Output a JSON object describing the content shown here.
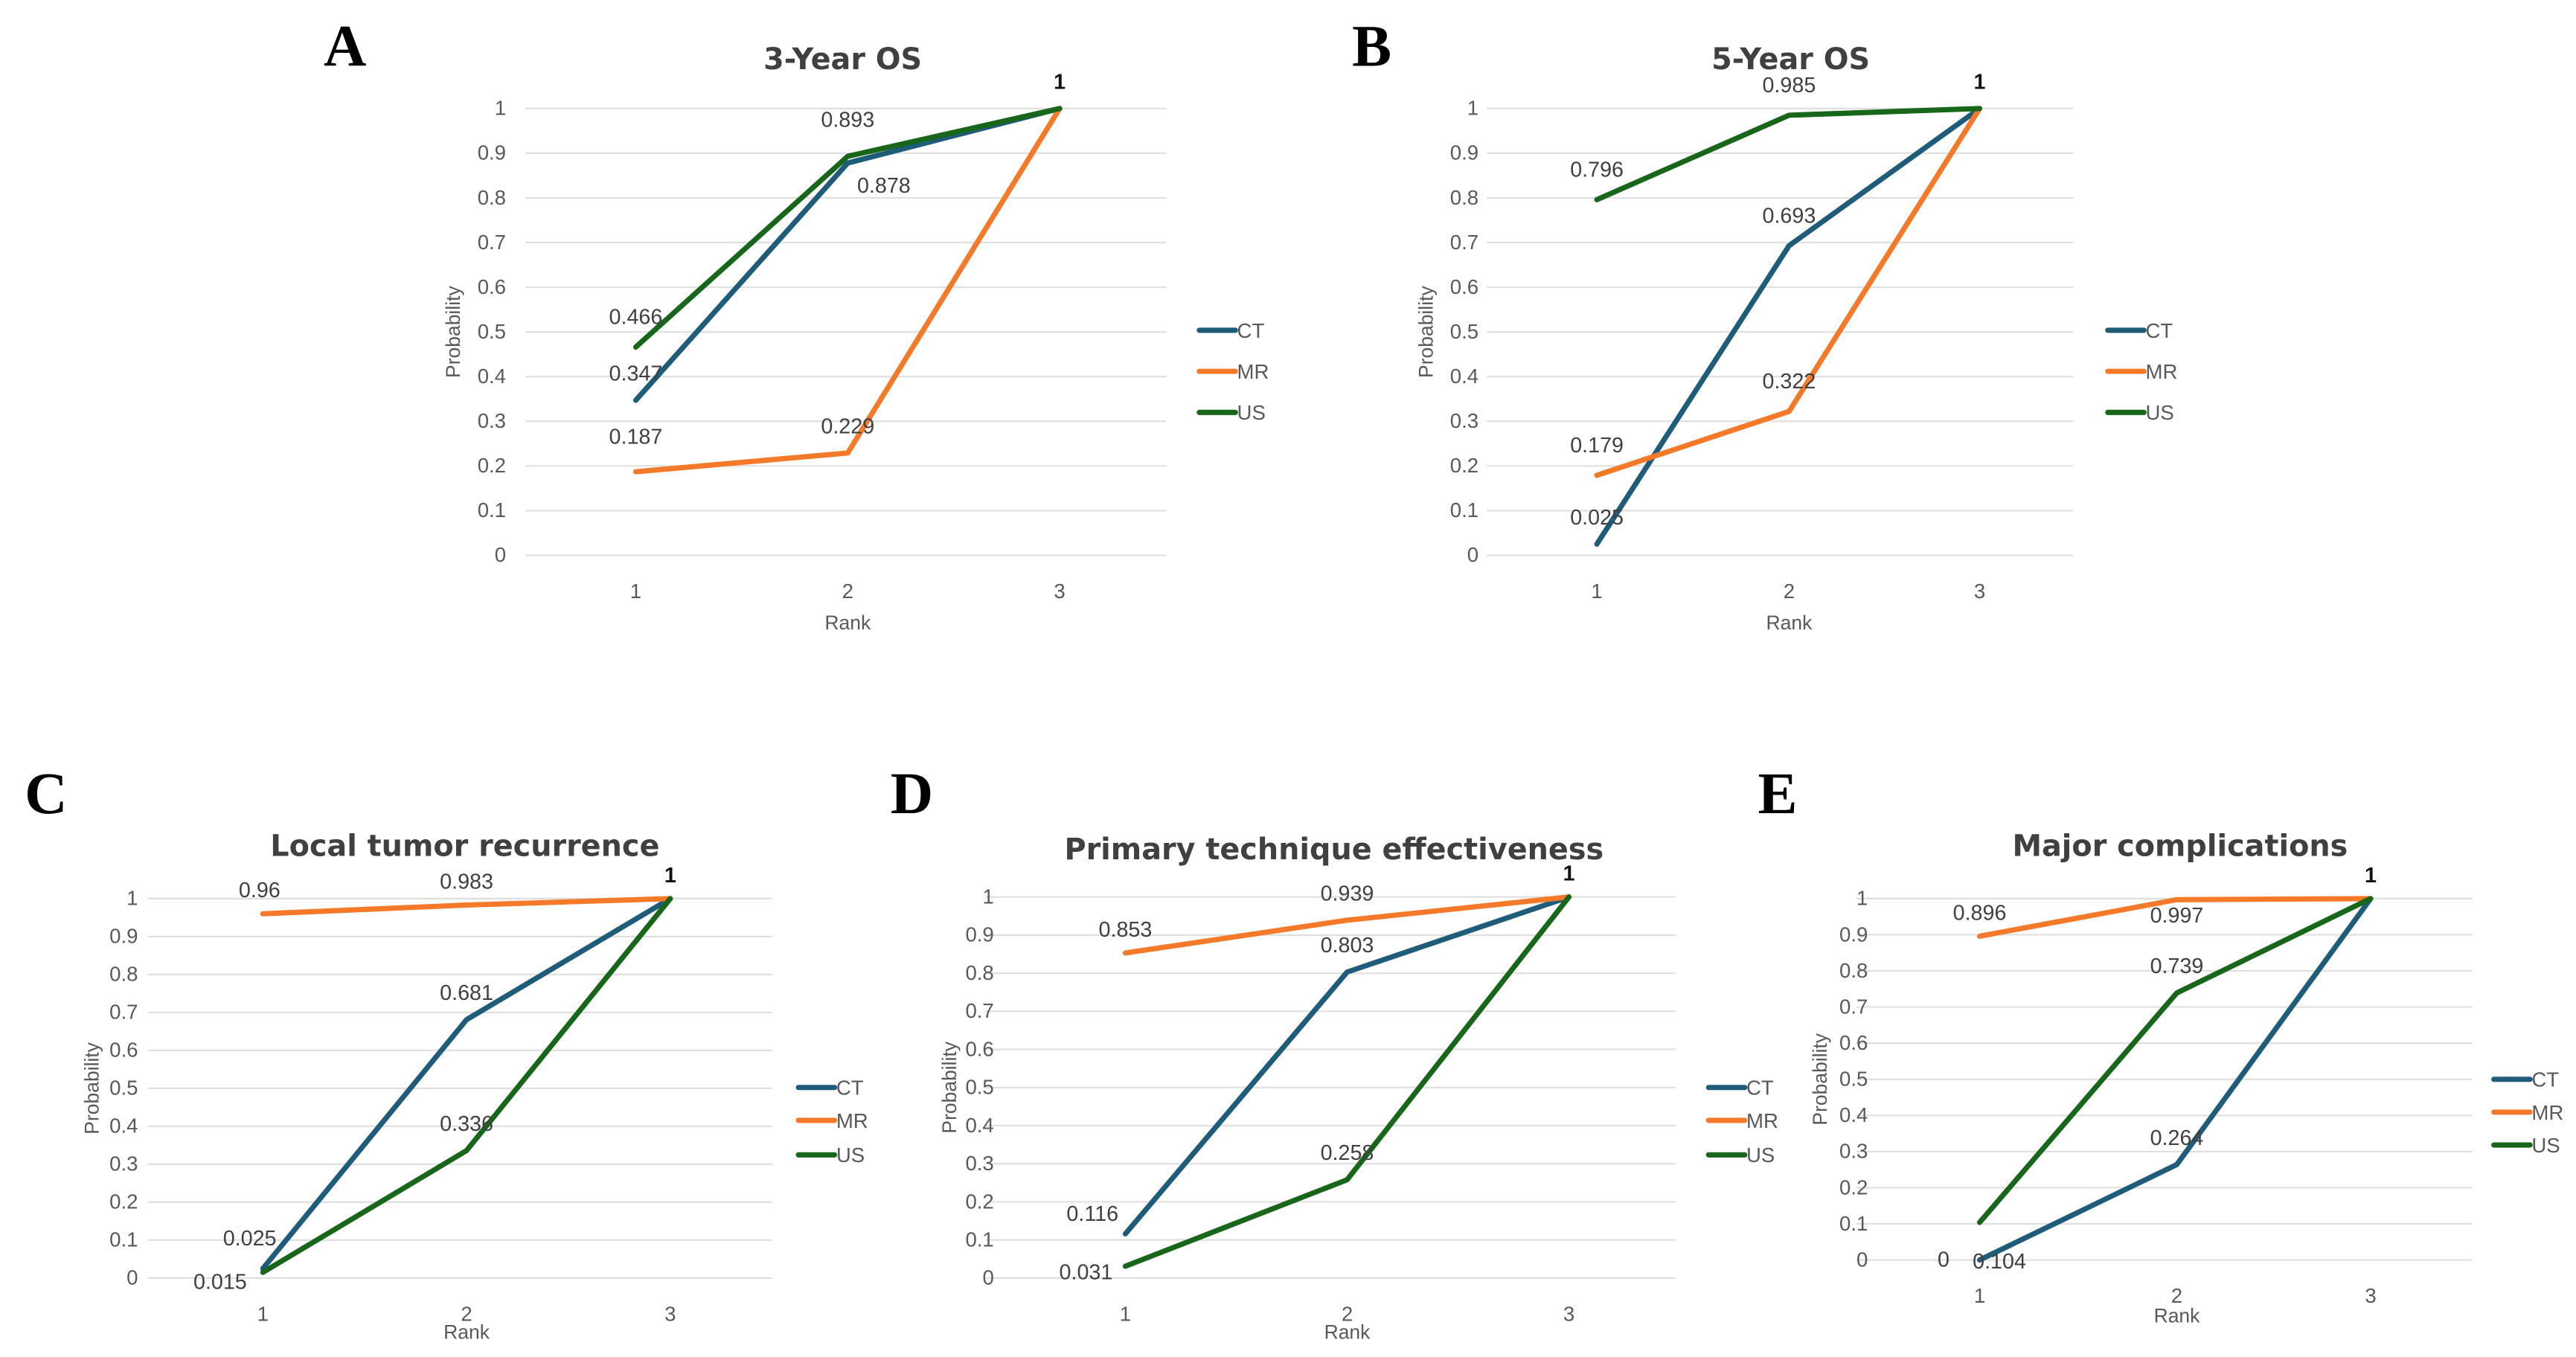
{
  "colors": {
    "CT": "#1F5C7A",
    "MR": "#F47A2A",
    "US": "#17661A"
  },
  "chart_data": [
    {
      "panel": "A",
      "type": "line",
      "title": "3-Year OS",
      "xlabel": "Rank",
      "ylabel": "Probability",
      "categories": [
        "1",
        "2",
        "3"
      ],
      "yticks": [
        "0",
        "0.1",
        "0.2",
        "0.3",
        "0.4",
        "0.5",
        "0.6",
        "0.7",
        "0.8",
        "0.9",
        "1"
      ],
      "ylim": [
        0,
        1
      ],
      "grid": true,
      "legend": "right",
      "series": [
        {
          "name": "CT",
          "values": [
            0.347,
            0.878,
            1
          ],
          "labels": [
            "0.347",
            "0.878",
            ""
          ]
        },
        {
          "name": "MR",
          "values": [
            0.187,
            0.229,
            1
          ],
          "labels": [
            "0.187",
            "0.229",
            ""
          ]
        },
        {
          "name": "US",
          "values": [
            0.466,
            0.893,
            1
          ],
          "labels": [
            "0.466",
            "0.893",
            "1"
          ]
        }
      ]
    },
    {
      "panel": "B",
      "type": "line",
      "title": "5-Year OS",
      "xlabel": "Rank",
      "ylabel": "Probability",
      "categories": [
        "1",
        "2",
        "3"
      ],
      "yticks": [
        "0",
        "0.1",
        "0.2",
        "0.3",
        "0.4",
        "0.5",
        "0.6",
        "0.7",
        "0.8",
        "0.9",
        "1"
      ],
      "ylim": [
        0,
        1
      ],
      "grid": true,
      "legend": "right",
      "series": [
        {
          "name": "CT",
          "values": [
            0.025,
            0.693,
            1
          ],
          "labels": [
            "0.025",
            "0.693",
            ""
          ]
        },
        {
          "name": "MR",
          "values": [
            0.179,
            0.322,
            1
          ],
          "labels": [
            "0.179",
            "0.322",
            ""
          ]
        },
        {
          "name": "US",
          "values": [
            0.796,
            0.985,
            1
          ],
          "labels": [
            "0.796",
            "0.985",
            "1"
          ]
        }
      ]
    },
    {
      "panel": "C",
      "type": "line",
      "title": "Local tumor recurrence",
      "xlabel": "Rank",
      "ylabel": "Probability",
      "categories": [
        "1",
        "2",
        "3"
      ],
      "yticks": [
        "0",
        "0.1",
        "0.2",
        "0.3",
        "0.4",
        "0.5",
        "0.6",
        "0.7",
        "0.8",
        "0.9",
        "1"
      ],
      "ylim": [
        0,
        1
      ],
      "grid": true,
      "legend": "right",
      "series": [
        {
          "name": "CT",
          "values": [
            0.025,
            0.681,
            1
          ],
          "labels": [
            "0.025",
            "0.681",
            ""
          ]
        },
        {
          "name": "MR",
          "values": [
            0.96,
            0.983,
            1
          ],
          "labels": [
            "0.96",
            "0.983",
            "1"
          ]
        },
        {
          "name": "US",
          "values": [
            0.015,
            0.336,
            1
          ],
          "labels": [
            "0.015",
            "0.336",
            ""
          ]
        }
      ]
    },
    {
      "panel": "D",
      "type": "line",
      "title": "Primary technique effectiveness",
      "xlabel": "Rank",
      "ylabel": "Probability",
      "categories": [
        "1",
        "2",
        "3"
      ],
      "yticks": [
        "0",
        "0.1",
        "0.2",
        "0.3",
        "0.4",
        "0.5",
        "0.6",
        "0.7",
        "0.8",
        "0.9",
        "1"
      ],
      "ylim": [
        0,
        1
      ],
      "grid": true,
      "legend": "right",
      "series": [
        {
          "name": "CT",
          "values": [
            0.116,
            0.803,
            1
          ],
          "labels": [
            "0.116",
            "0.803",
            ""
          ]
        },
        {
          "name": "MR",
          "values": [
            0.853,
            0.939,
            1
          ],
          "labels": [
            "0.853",
            "0.939",
            "1"
          ]
        },
        {
          "name": "US",
          "values": [
            0.031,
            0.258,
            1
          ],
          "labels": [
            "0.031",
            "0.258",
            ""
          ]
        }
      ]
    },
    {
      "panel": "E",
      "type": "line",
      "title": "Major complications",
      "xlabel": "Rank",
      "ylabel": "Probability",
      "categories": [
        "1",
        "2",
        "3"
      ],
      "yticks": [
        "0",
        "0.1",
        "0.2",
        "0.3",
        "0.4",
        "0.5",
        "0.6",
        "0.7",
        "0.8",
        "0.9",
        "1"
      ],
      "ylim": [
        0,
        1
      ],
      "grid": true,
      "legend": "right",
      "series": [
        {
          "name": "CT",
          "values": [
            0,
            0.264,
            1
          ],
          "labels": [
            "0",
            "0.264",
            ""
          ]
        },
        {
          "name": "MR",
          "values": [
            0.896,
            0.997,
            1
          ],
          "labels": [
            "0.896",
            "0.997",
            "1"
          ]
        },
        {
          "name": "US",
          "values": [
            0.104,
            0.739,
            1
          ],
          "labels": [
            "0.104",
            "0.739",
            ""
          ]
        }
      ]
    }
  ]
}
